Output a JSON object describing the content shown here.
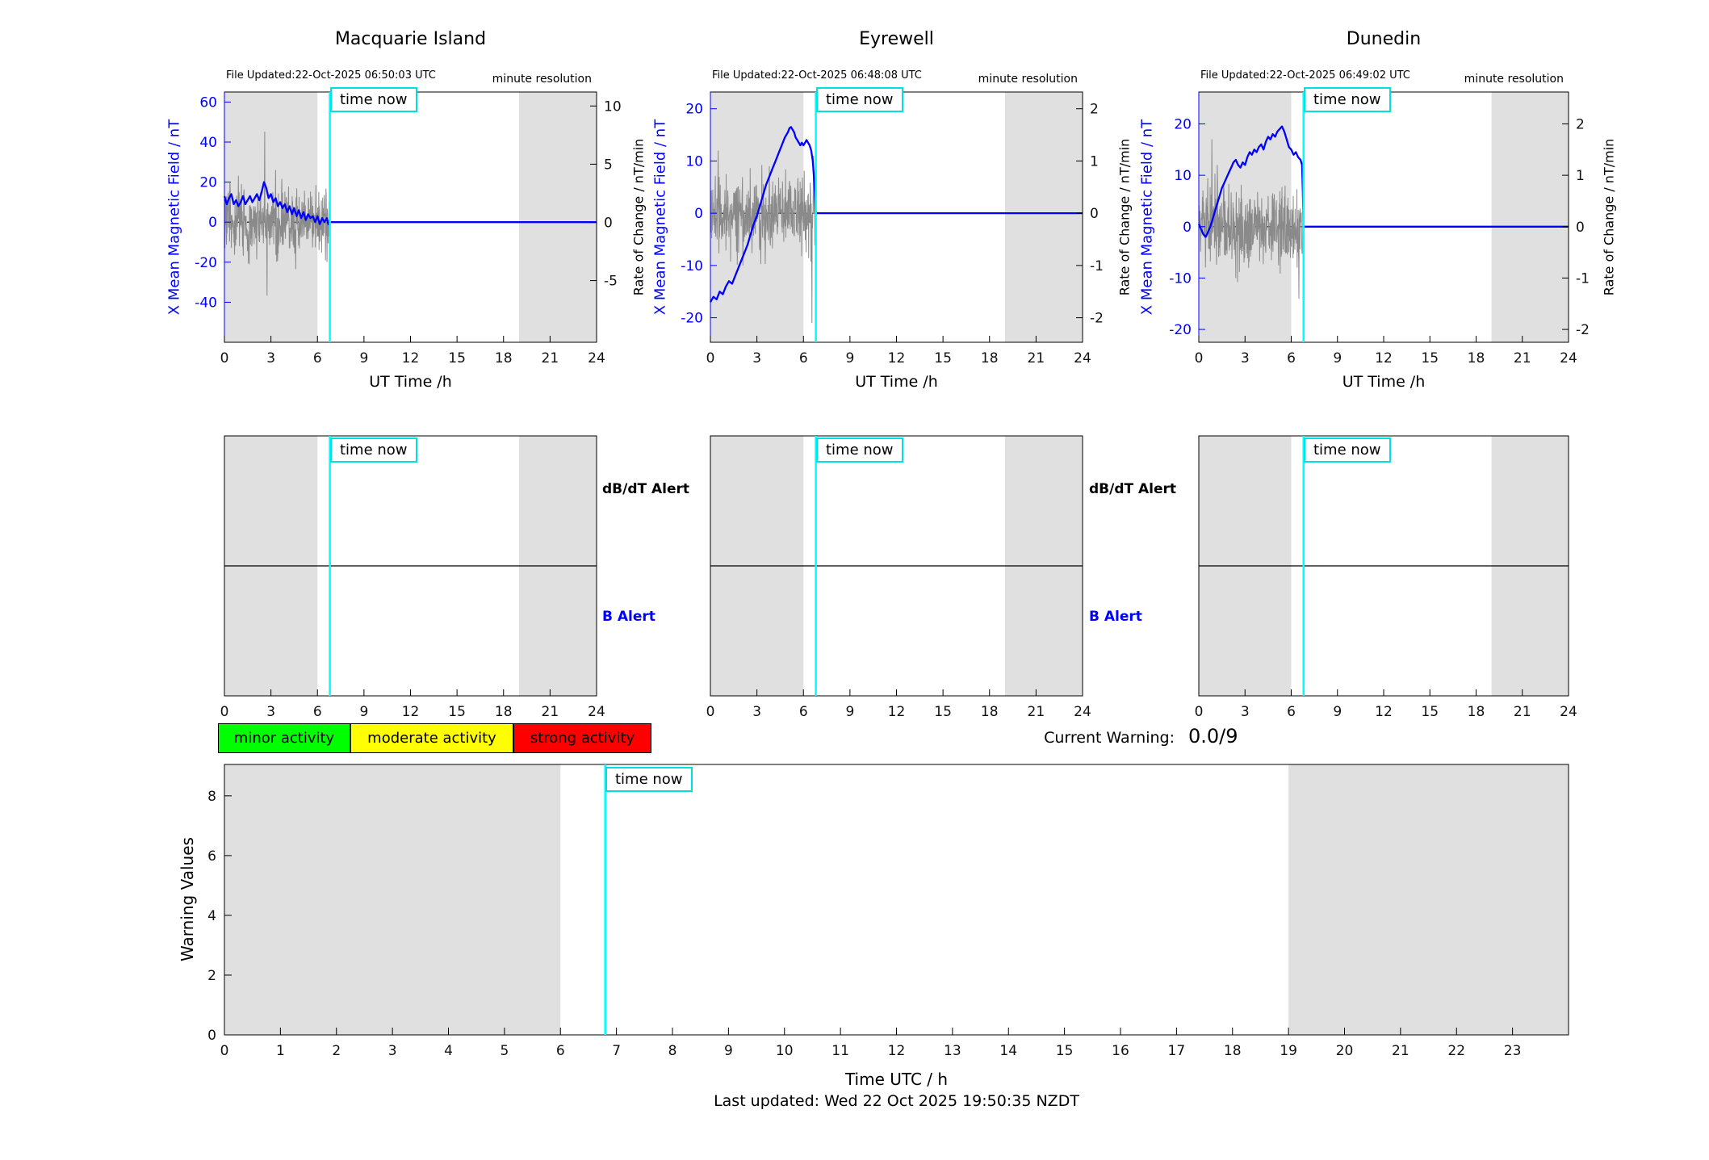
{
  "page": {
    "footer": "Last updated: Wed 22 Oct 2025 19:50:35 NZDT"
  },
  "labels": {
    "time_now": "time now",
    "minute_resolution": "minute resolution",
    "ut_time": "UT Time /h",
    "time_utc": "Time UTC / h",
    "warning_values": "Warning Values",
    "dbdt_alert": "dB/dT Alert",
    "b_alert": "B Alert",
    "current_warning": "Current Warning:",
    "current_warning_value": "0.0/9",
    "legend_minor": "minor activity",
    "legend_moderate": "moderate activity",
    "legend_strong": "strong activity"
  },
  "colors": {
    "field_line": "#0000ff",
    "rate_line": "#8a8a8a",
    "time_now": "#00ffff",
    "shading": "#e0e0e0",
    "minor": "#00ff00",
    "moderate": "#ffff00",
    "strong": "#ff0000"
  },
  "stations": [
    {
      "name": "Macquarie Island",
      "file_updated": "File Updated:22-Oct-2025 06:50:03 UTC",
      "left_axis_label": "X Mean Magnetic Field / nT",
      "right_axis_label": "Rate of Change / nT/min"
    },
    {
      "name": "Eyrewell",
      "file_updated": "File Updated:22-Oct-2025 06:48:08 UTC",
      "left_axis_label": "X Mean Magnetic Field / nT",
      "right_axis_label": "Rate of Change / nT/min"
    },
    {
      "name": "Dunedin",
      "file_updated": "File Updated:22-Oct-2025 06:49:02 UTC",
      "left_axis_label": "X Mean Magnetic Field / nT",
      "right_axis_label": "Rate of Change / nT/min"
    }
  ],
  "chart_data": [
    {
      "type": "line",
      "station": "Macquarie Island",
      "x": {
        "label": "UT Time /h",
        "lim": [
          0,
          24
        ],
        "ticks": [
          0,
          3,
          6,
          9,
          12,
          15,
          18,
          21,
          24
        ]
      },
      "y_left": {
        "label": "X Mean Magnetic Field / nT",
        "lim": [
          -60,
          65
        ],
        "ticks": [
          60,
          40,
          20,
          0,
          -20,
          -40
        ],
        "color": "#0000ff"
      },
      "y_right": {
        "label": "Rate of Change / nT/min",
        "lim": [
          -10.3,
          11.2
        ],
        "ticks": [
          10,
          5,
          0,
          -5
        ]
      },
      "shaded_hours": [
        [
          0,
          6
        ],
        [
          19,
          24
        ]
      ],
      "time_now_hour": 6.8,
      "field_series": [
        [
          0,
          13
        ],
        [
          0.15,
          9
        ],
        [
          0.3,
          12
        ],
        [
          0.45,
          14
        ],
        [
          0.6,
          9
        ],
        [
          0.75,
          11
        ],
        [
          0.9,
          8
        ],
        [
          1.05,
          10
        ],
        [
          1.2,
          13
        ],
        [
          1.35,
          9
        ],
        [
          1.5,
          11
        ],
        [
          1.65,
          13
        ],
        [
          1.8,
          10
        ],
        [
          1.95,
          12
        ],
        [
          2.1,
          14
        ],
        [
          2.25,
          11
        ],
        [
          2.4,
          15
        ],
        [
          2.55,
          20
        ],
        [
          2.7,
          17
        ],
        [
          2.85,
          12
        ],
        [
          3,
          14
        ],
        [
          3.15,
          10
        ],
        [
          3.3,
          12
        ],
        [
          3.45,
          8
        ],
        [
          3.6,
          10
        ],
        [
          3.75,
          7
        ],
        [
          3.9,
          9
        ],
        [
          4.05,
          5
        ],
        [
          4.2,
          8
        ],
        [
          4.35,
          4
        ],
        [
          4.5,
          7
        ],
        [
          4.65,
          3
        ],
        [
          4.8,
          6
        ],
        [
          4.95,
          2
        ],
        [
          5.1,
          5
        ],
        [
          5.25,
          1
        ],
        [
          5.4,
          4
        ],
        [
          5.55,
          2
        ],
        [
          5.7,
          3
        ],
        [
          5.85,
          0
        ],
        [
          6,
          3
        ],
        [
          6.15,
          -1
        ],
        [
          6.3,
          2
        ],
        [
          6.45,
          0
        ],
        [
          6.6,
          2
        ],
        [
          6.7,
          -1
        ],
        [
          6.8,
          0
        ],
        [
          24,
          0
        ]
      ],
      "rate_noise": {
        "seed": 3,
        "amplitude": 1.4,
        "t_start": 0,
        "t_end": 6.8,
        "spikes": [
          [
            2.6,
            7.8
          ],
          [
            2.75,
            -6.3
          ],
          [
            0.9,
            4.0
          ],
          [
            1.6,
            -3.6
          ],
          [
            3.3,
            4.5
          ],
          [
            4.6,
            -4.0
          ],
          [
            5.9,
            3.2
          ]
        ]
      }
    },
    {
      "type": "line",
      "station": "Eyrewell",
      "x": {
        "label": "UT Time /h",
        "lim": [
          0,
          24
        ],
        "ticks": [
          0,
          3,
          6,
          9,
          12,
          15,
          18,
          21,
          24
        ]
      },
      "y_left": {
        "label": "X Mean Magnetic Field / nT",
        "lim": [
          -24.7,
          23.2
        ],
        "ticks": [
          20,
          10,
          0,
          -10,
          -20
        ],
        "color": "#0000ff"
      },
      "y_right": {
        "label": "Rate of Change / nT/min",
        "lim": [
          -2.47,
          2.32
        ],
        "ticks": [
          2,
          1,
          0,
          -1,
          -2
        ]
      },
      "shaded_hours": [
        [
          0,
          6
        ],
        [
          19,
          24
        ]
      ],
      "time_now_hour": 6.8,
      "field_series": [
        [
          0,
          -17
        ],
        [
          0.2,
          -16
        ],
        [
          0.4,
          -16.5
        ],
        [
          0.6,
          -15
        ],
        [
          0.8,
          -15.5
        ],
        [
          1,
          -14
        ],
        [
          1.2,
          -13
        ],
        [
          1.4,
          -13.5
        ],
        [
          1.6,
          -12
        ],
        [
          1.8,
          -10.5
        ],
        [
          2,
          -9
        ],
        [
          2.2,
          -7.5
        ],
        [
          2.4,
          -6
        ],
        [
          2.6,
          -4
        ],
        [
          2.8,
          -2
        ],
        [
          3,
          -0.5
        ],
        [
          3.2,
          1.5
        ],
        [
          3.4,
          3.5
        ],
        [
          3.6,
          5.5
        ],
        [
          3.8,
          7
        ],
        [
          4,
          8.5
        ],
        [
          4.2,
          10
        ],
        [
          4.4,
          11.5
        ],
        [
          4.6,
          13
        ],
        [
          4.8,
          14.5
        ],
        [
          5,
          15.5
        ],
        [
          5.1,
          16.3
        ],
        [
          5.2,
          16.5
        ],
        [
          5.3,
          16
        ],
        [
          5.4,
          15.5
        ],
        [
          5.5,
          14.5
        ],
        [
          5.6,
          14
        ],
        [
          5.7,
          13.5
        ],
        [
          5.8,
          13
        ],
        [
          5.9,
          13.5
        ],
        [
          6,
          13
        ],
        [
          6.1,
          13.5
        ],
        [
          6.2,
          14
        ],
        [
          6.3,
          13.5
        ],
        [
          6.4,
          13
        ],
        [
          6.5,
          12
        ],
        [
          6.6,
          10
        ],
        [
          6.7,
          6
        ],
        [
          6.75,
          3
        ],
        [
          6.8,
          0
        ],
        [
          24,
          0
        ]
      ],
      "rate_noise": {
        "seed": 5,
        "amplitude": 0.38,
        "t_start": 0,
        "t_end": 6.8,
        "spikes": [
          [
            0.5,
            1.2
          ],
          [
            2.1,
            -1.0
          ],
          [
            6.55,
            -2.1
          ],
          [
            6.65,
            1.1
          ],
          [
            3.8,
            0.9
          ]
        ]
      }
    },
    {
      "type": "line",
      "station": "Dunedin",
      "x": {
        "label": "UT Time /h",
        "lim": [
          0,
          24
        ],
        "ticks": [
          0,
          3,
          6,
          9,
          12,
          15,
          18,
          21,
          24
        ]
      },
      "y_left": {
        "label": "X Mean Magnetic Field / nT",
        "lim": [
          -22.5,
          26.2
        ],
        "ticks": [
          20,
          10,
          0,
          -10,
          -20
        ],
        "color": "#0000ff"
      },
      "y_right": {
        "label": "Rate of Change / nT/min",
        "lim": [
          -2.25,
          2.62
        ],
        "ticks": [
          2,
          1,
          0,
          -1,
          -2
        ]
      },
      "shaded_hours": [
        [
          0,
          6
        ],
        [
          19,
          24
        ]
      ],
      "time_now_hour": 6.8,
      "field_series": [
        [
          0,
          0.5
        ],
        [
          0.15,
          -0.5
        ],
        [
          0.3,
          -1.5
        ],
        [
          0.45,
          -2
        ],
        [
          0.6,
          -1
        ],
        [
          0.75,
          0
        ],
        [
          0.9,
          1.5
        ],
        [
          1.05,
          3
        ],
        [
          1.2,
          4.5
        ],
        [
          1.35,
          6
        ],
        [
          1.5,
          7.5
        ],
        [
          1.65,
          8.5
        ],
        [
          1.8,
          9.5
        ],
        [
          1.95,
          10.5
        ],
        [
          2.1,
          11.5
        ],
        [
          2.25,
          12.5
        ],
        [
          2.4,
          13
        ],
        [
          2.55,
          12
        ],
        [
          2.7,
          11.5
        ],
        [
          2.85,
          12.5
        ],
        [
          3,
          12
        ],
        [
          3.15,
          13.5
        ],
        [
          3.3,
          14.5
        ],
        [
          3.45,
          14
        ],
        [
          3.6,
          15
        ],
        [
          3.75,
          14.5
        ],
        [
          3.9,
          15.5
        ],
        [
          4.05,
          16
        ],
        [
          4.2,
          15
        ],
        [
          4.35,
          16.5
        ],
        [
          4.5,
          17.5
        ],
        [
          4.65,
          17
        ],
        [
          4.8,
          18
        ],
        [
          4.95,
          17.5
        ],
        [
          5.1,
          18.5
        ],
        [
          5.25,
          19
        ],
        [
          5.4,
          19.5
        ],
        [
          5.55,
          18.5
        ],
        [
          5.7,
          17
        ],
        [
          5.85,
          15.5
        ],
        [
          6,
          15
        ],
        [
          6.15,
          14
        ],
        [
          6.3,
          14.5
        ],
        [
          6.45,
          13.5
        ],
        [
          6.6,
          13
        ],
        [
          6.7,
          12
        ],
        [
          6.75,
          7
        ],
        [
          6.8,
          0
        ],
        [
          24,
          0
        ]
      ],
      "rate_noise": {
        "seed": 9,
        "amplitude": 0.4,
        "t_start": 0,
        "t_end": 6.8,
        "spikes": [
          [
            0.85,
            1.7
          ],
          [
            1.2,
            1.2
          ],
          [
            6.5,
            -1.4
          ],
          [
            2.4,
            -1.0
          ],
          [
            5.6,
            0.8
          ]
        ]
      }
    },
    {
      "type": "alert-panels",
      "x": {
        "lim": [
          0,
          24
        ],
        "ticks": [
          0,
          3,
          6,
          9,
          12,
          15,
          18,
          21,
          24
        ]
      },
      "shaded_hours": [
        [
          0,
          6
        ],
        [
          19,
          24
        ]
      ],
      "time_now_hour": 6.8
    },
    {
      "type": "line",
      "name": "warning-values",
      "x": {
        "label": "Time UTC / h",
        "lim": [
          0,
          24
        ],
        "ticks": [
          0,
          1,
          2,
          3,
          4,
          5,
          6,
          7,
          8,
          9,
          10,
          11,
          12,
          13,
          14,
          15,
          16,
          17,
          18,
          19,
          20,
          21,
          22,
          23
        ]
      },
      "y": {
        "label": "Warning Values",
        "lim": [
          0,
          9.05
        ],
        "ticks": [
          0,
          2,
          4,
          6,
          8
        ]
      },
      "shaded_hours": [
        [
          0,
          6
        ],
        [
          19,
          24
        ]
      ],
      "time_now_hour": 6.8,
      "series": []
    }
  ]
}
